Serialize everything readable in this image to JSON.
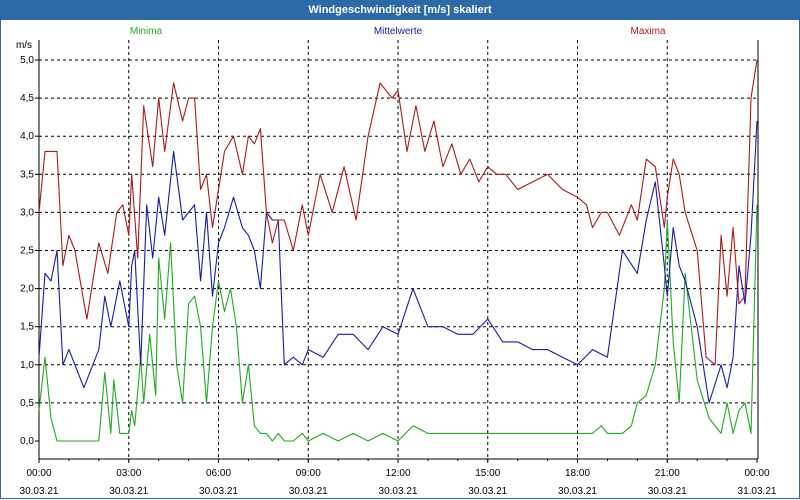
{
  "window": {
    "title": "Windgeschwindigkeit [m/s] skaliert"
  },
  "chart_data": {
    "type": "line",
    "title": "Windgeschwindigkeit [m/s] skaliert",
    "ylabel": "m/s",
    "ylim": [
      0,
      5.0
    ],
    "xlim": [
      0,
      24
    ],
    "grid": true,
    "y_ticks": [
      "0,0",
      "0,5",
      "1,0",
      "1,5",
      "2,0",
      "2,5",
      "3,0",
      "3,5",
      "4,0",
      "4,5",
      "5,0"
    ],
    "x_ticks": [
      {
        "time": "00:00",
        "date": "30.03.21"
      },
      {
        "time": "03:00",
        "date": "30.03.21"
      },
      {
        "time": "06:00",
        "date": "30.03.21"
      },
      {
        "time": "09:00",
        "date": "30.03.21"
      },
      {
        "time": "12:00",
        "date": "30.03.21"
      },
      {
        "time": "15:00",
        "date": "30.03.21"
      },
      {
        "time": "18:00",
        "date": "30.03.21"
      },
      {
        "time": "21:00",
        "date": "30.03.21"
      },
      {
        "time": "00:00",
        "date": "31.03.21"
      }
    ],
    "series": [
      {
        "name": "Minima",
        "color": "#22aa22",
        "x": [
          0.0,
          0.2,
          0.4,
          0.6,
          0.8,
          1.0,
          1.5,
          2.0,
          2.2,
          2.4,
          2.5,
          2.7,
          3.0,
          3.1,
          3.2,
          3.4,
          3.5,
          3.7,
          3.9,
          4.0,
          4.2,
          4.4,
          4.6,
          4.8,
          5.0,
          5.2,
          5.4,
          5.6,
          5.8,
          6.0,
          6.2,
          6.4,
          6.6,
          6.8,
          7.0,
          7.2,
          7.4,
          7.6,
          7.8,
          8.0,
          8.2,
          8.5,
          8.8,
          9.0,
          9.5,
          10.0,
          10.5,
          11.0,
          11.5,
          12.0,
          12.5,
          13.0,
          13.5,
          14.0,
          14.5,
          15.0,
          15.5,
          16.0,
          16.5,
          17.0,
          17.5,
          18.0,
          18.5,
          18.8,
          19.0,
          19.2,
          19.5,
          19.8,
          20.0,
          20.3,
          20.6,
          20.9,
          21.0,
          21.2,
          21.4,
          21.6,
          22.0,
          22.4,
          22.8,
          23.0,
          23.2,
          23.4,
          23.6,
          23.8,
          24.0
        ],
        "values": [
          0.4,
          1.1,
          0.3,
          0.0,
          0.0,
          0.0,
          0.0,
          0.0,
          0.9,
          0.1,
          0.8,
          0.1,
          0.1,
          0.4,
          0.2,
          1.1,
          0.5,
          1.4,
          0.6,
          2.4,
          1.6,
          2.6,
          1.0,
          0.5,
          1.8,
          1.9,
          1.5,
          0.5,
          1.5,
          2.1,
          1.7,
          2.0,
          1.5,
          0.5,
          1.0,
          0.2,
          0.1,
          0.1,
          0.0,
          0.1,
          0.0,
          0.0,
          0.1,
          0.0,
          0.1,
          0.0,
          0.1,
          0.0,
          0.1,
          0.0,
          0.2,
          0.1,
          0.1,
          0.1,
          0.1,
          0.1,
          0.1,
          0.1,
          0.1,
          0.1,
          0.1,
          0.1,
          0.1,
          0.2,
          0.1,
          0.1,
          0.1,
          0.2,
          0.5,
          0.6,
          1.0,
          2.0,
          2.9,
          1.3,
          0.5,
          2.2,
          0.8,
          0.3,
          0.1,
          0.5,
          0.1,
          0.4,
          0.5,
          0.1,
          3.1
        ]
      },
      {
        "name": "Mittelwerte",
        "color": "#1a1aaa",
        "x": [
          0.0,
          0.2,
          0.4,
          0.6,
          0.8,
          1.0,
          1.5,
          2.0,
          2.2,
          2.4,
          2.7,
          3.0,
          3.1,
          3.2,
          3.4,
          3.6,
          3.8,
          4.0,
          4.2,
          4.5,
          4.8,
          5.0,
          5.2,
          5.4,
          5.6,
          5.8,
          6.0,
          6.2,
          6.5,
          6.8,
          7.0,
          7.2,
          7.4,
          7.6,
          7.8,
          8.0,
          8.2,
          8.5,
          8.8,
          9.0,
          9.5,
          10.0,
          10.5,
          11.0,
          11.5,
          12.0,
          12.5,
          13.0,
          13.5,
          14.0,
          14.5,
          15.0,
          15.5,
          16.0,
          16.5,
          17.0,
          17.5,
          18.0,
          18.5,
          19.0,
          19.5,
          20.0,
          20.3,
          20.6,
          20.9,
          21.0,
          21.2,
          21.4,
          21.6,
          22.0,
          22.4,
          22.8,
          23.0,
          23.2,
          23.4,
          23.6,
          23.8,
          24.0
        ],
        "values": [
          1.1,
          2.2,
          2.1,
          2.5,
          1.0,
          1.2,
          0.7,
          1.2,
          1.9,
          1.5,
          2.1,
          1.5,
          2.3,
          2.5,
          1.0,
          3.1,
          2.4,
          3.2,
          2.7,
          3.8,
          2.9,
          3.0,
          3.1,
          2.1,
          3.0,
          1.9,
          2.6,
          2.8,
          3.2,
          2.8,
          2.7,
          2.5,
          2.0,
          3.0,
          2.9,
          2.9,
          1.0,
          1.1,
          1.0,
          1.2,
          1.1,
          1.4,
          1.4,
          1.2,
          1.5,
          1.4,
          2.0,
          1.5,
          1.5,
          1.4,
          1.4,
          1.6,
          1.3,
          1.3,
          1.2,
          1.2,
          1.1,
          1.0,
          1.2,
          1.1,
          2.5,
          2.2,
          2.9,
          3.4,
          2.3,
          1.9,
          2.8,
          2.3,
          2.1,
          1.5,
          0.5,
          1.0,
          0.7,
          1.1,
          2.3,
          1.8,
          2.7,
          4.2
        ]
      },
      {
        "name": "Maxima",
        "color": "#aa1a1a",
        "x": [
          0.0,
          0.2,
          0.4,
          0.6,
          0.8,
          1.0,
          1.2,
          1.6,
          2.0,
          2.3,
          2.6,
          2.8,
          3.0,
          3.1,
          3.3,
          3.5,
          3.8,
          4.0,
          4.2,
          4.5,
          4.8,
          5.0,
          5.2,
          5.4,
          5.6,
          5.8,
          6.0,
          6.2,
          6.5,
          6.8,
          7.0,
          7.2,
          7.4,
          7.6,
          7.8,
          8.0,
          8.2,
          8.5,
          8.8,
          9.0,
          9.4,
          9.8,
          10.2,
          10.6,
          11.0,
          11.4,
          11.8,
          12.0,
          12.3,
          12.6,
          12.9,
          13.2,
          13.5,
          13.8,
          14.1,
          14.4,
          14.7,
          15.0,
          15.3,
          15.6,
          16.0,
          16.5,
          17.0,
          17.5,
          18.0,
          18.3,
          18.5,
          18.8,
          19.0,
          19.4,
          19.8,
          20.0,
          20.3,
          20.6,
          20.9,
          21.0,
          21.2,
          21.4,
          21.6,
          22.0,
          22.3,
          22.6,
          22.8,
          23.0,
          23.2,
          23.4,
          23.6,
          23.8,
          24.0
        ],
        "values": [
          3.0,
          3.8,
          3.8,
          3.8,
          2.3,
          2.7,
          2.5,
          1.6,
          2.6,
          2.2,
          3.0,
          3.1,
          2.7,
          3.5,
          2.4,
          4.4,
          3.6,
          4.5,
          3.8,
          4.7,
          4.2,
          4.5,
          4.5,
          3.3,
          3.5,
          2.8,
          3.3,
          3.8,
          4.0,
          3.5,
          4.0,
          3.9,
          4.1,
          3.0,
          2.6,
          2.9,
          2.9,
          2.5,
          3.1,
          2.7,
          3.5,
          3.0,
          3.6,
          2.9,
          4.0,
          4.7,
          4.5,
          4.6,
          3.8,
          4.4,
          3.8,
          4.2,
          3.6,
          3.9,
          3.5,
          3.7,
          3.4,
          3.6,
          3.5,
          3.5,
          3.3,
          3.4,
          3.5,
          3.3,
          3.2,
          3.1,
          2.8,
          3.0,
          3.0,
          2.7,
          3.1,
          2.9,
          3.7,
          3.6,
          2.8,
          3.2,
          3.7,
          3.5,
          3.0,
          2.5,
          1.1,
          1.0,
          2.7,
          1.9,
          2.8,
          1.8,
          1.9,
          4.5,
          5.0
        ]
      }
    ]
  }
}
